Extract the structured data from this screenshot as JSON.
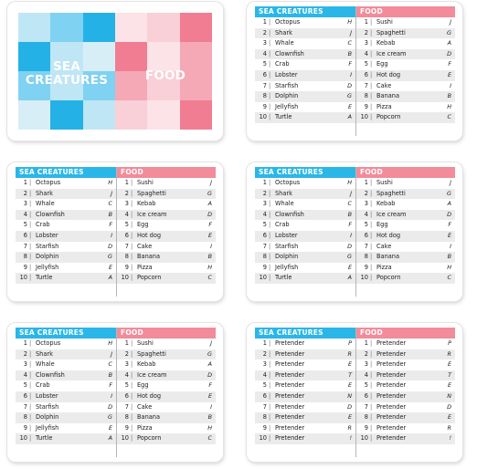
{
  "colors": {
    "sea_header": "#2ab7e8",
    "food_header": "#f28b9a",
    "row_alt": "#ebebeb",
    "cover_blue": [
      "#24b1e6",
      "#7fd2f1",
      "#bfe6f4",
      "#d8eef6"
    ],
    "cover_pink": [
      "#f07d92",
      "#f5a9b6",
      "#f9d0d7",
      "#fbe3e7"
    ]
  },
  "cover": {
    "left_title": [
      "SEA",
      "CREATURES"
    ],
    "right_title": "FOOD"
  },
  "headers": {
    "sea": "SEA CREATURES",
    "food": "FOOD"
  },
  "separator": "|",
  "numbers": [
    "1",
    "2",
    "3",
    "4",
    "5",
    "6",
    "7",
    "8",
    "9",
    "10"
  ],
  "lists": {
    "sea": [
      {
        "name": "Octopus",
        "letter": "H"
      },
      {
        "name": "Shark",
        "letter": "J"
      },
      {
        "name": "Whale",
        "letter": "C"
      },
      {
        "name": "Clownfish",
        "letter": "B"
      },
      {
        "name": "Crab",
        "letter": "F"
      },
      {
        "name": "Lobster",
        "letter": "I"
      },
      {
        "name": "Starfish",
        "letter": "D"
      },
      {
        "name": "Dolphin",
        "letter": "G"
      },
      {
        "name": "Jellyfish",
        "letter": "E"
      },
      {
        "name": "Turtle",
        "letter": "A"
      }
    ],
    "food": [
      {
        "name": "Sushi",
        "letter": "J"
      },
      {
        "name": "Spaghetti",
        "letter": "G"
      },
      {
        "name": "Kebab",
        "letter": "A"
      },
      {
        "name": "Ice cream",
        "letter": "D"
      },
      {
        "name": "Egg",
        "letter": "F"
      },
      {
        "name": "Hot dog",
        "letter": "E"
      },
      {
        "name": "Cake",
        "letter": "I"
      },
      {
        "name": "Banana",
        "letter": "B"
      },
      {
        "name": "Pizza",
        "letter": "H"
      },
      {
        "name": "Popcorn",
        "letter": "C"
      }
    ],
    "pretender_sea": [
      {
        "name": "Pretender",
        "letter": "P"
      },
      {
        "name": "Pretender",
        "letter": "R"
      },
      {
        "name": "Pretender",
        "letter": "E"
      },
      {
        "name": "Pretender",
        "letter": "T"
      },
      {
        "name": "Pretender",
        "letter": "E"
      },
      {
        "name": "Pretender",
        "letter": "N"
      },
      {
        "name": "Pretender",
        "letter": "D"
      },
      {
        "name": "Pretender",
        "letter": "E"
      },
      {
        "name": "Pretender",
        "letter": "R"
      },
      {
        "name": "Pretender",
        "letter": "!"
      }
    ],
    "pretender_food": [
      {
        "name": "Pretender",
        "letter": "P"
      },
      {
        "name": "Pretender",
        "letter": "R"
      },
      {
        "name": "Pretender",
        "letter": "E"
      },
      {
        "name": "Pretender",
        "letter": "T"
      },
      {
        "name": "Pretender",
        "letter": "E"
      },
      {
        "name": "Pretender",
        "letter": "N"
      },
      {
        "name": "Pretender",
        "letter": "D"
      },
      {
        "name": "Pretender",
        "letter": "E"
      },
      {
        "name": "Pretender",
        "letter": "R"
      },
      {
        "name": "Pretender",
        "letter": "!"
      }
    ]
  }
}
